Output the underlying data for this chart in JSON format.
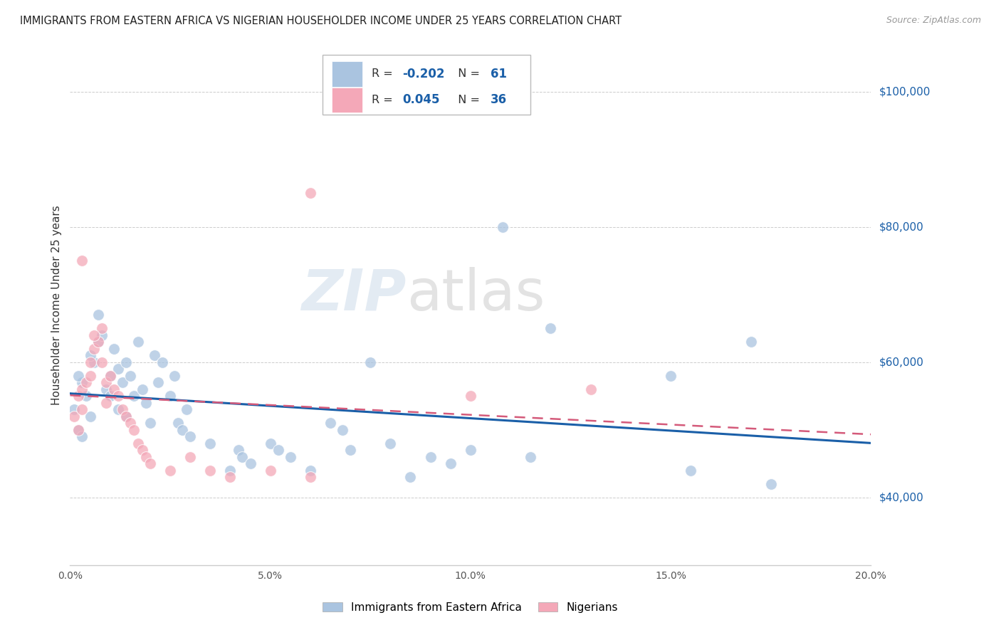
{
  "title": "IMMIGRANTS FROM EASTERN AFRICA VS NIGERIAN HOUSEHOLDER INCOME UNDER 25 YEARS CORRELATION CHART",
  "source": "Source: ZipAtlas.com",
  "ylabel": "Householder Income Under 25 years",
  "y_tick_labels": [
    "$40,000",
    "$60,000",
    "$80,000",
    "$100,000"
  ],
  "y_tick_values": [
    40000,
    60000,
    80000,
    100000
  ],
  "xlim": [
    0.0,
    0.2
  ],
  "ylim": [
    30000,
    107000
  ],
  "blue_R": "-0.202",
  "blue_N": "61",
  "pink_R": "0.045",
  "pink_N": "36",
  "blue_color": "#aac4e0",
  "pink_color": "#f4a8b8",
  "blue_line_color": "#1a5fa8",
  "pink_line_color": "#d45a7a",
  "blue_scatter": [
    [
      0.001,
      53000
    ],
    [
      0.002,
      50000
    ],
    [
      0.003,
      57000
    ],
    [
      0.004,
      55000
    ],
    [
      0.005,
      52000
    ],
    [
      0.003,
      49000
    ],
    [
      0.002,
      58000
    ],
    [
      0.006,
      60000
    ],
    [
      0.007,
      63000
    ],
    [
      0.008,
      64000
    ],
    [
      0.005,
      61000
    ],
    [
      0.009,
      56000
    ],
    [
      0.01,
      58000
    ],
    [
      0.011,
      62000
    ],
    [
      0.012,
      59000
    ],
    [
      0.01,
      55000
    ],
    [
      0.013,
      57000
    ],
    [
      0.012,
      53000
    ],
    [
      0.014,
      60000
    ],
    [
      0.015,
      58000
    ],
    [
      0.016,
      55000
    ],
    [
      0.014,
      52000
    ],
    [
      0.017,
      63000
    ],
    [
      0.007,
      67000
    ],
    [
      0.018,
      56000
    ],
    [
      0.019,
      54000
    ],
    [
      0.02,
      51000
    ],
    [
      0.021,
      61000
    ],
    [
      0.022,
      57000
    ],
    [
      0.023,
      60000
    ],
    [
      0.025,
      55000
    ],
    [
      0.026,
      58000
    ],
    [
      0.027,
      51000
    ],
    [
      0.028,
      50000
    ],
    [
      0.029,
      53000
    ],
    [
      0.03,
      49000
    ],
    [
      0.035,
      48000
    ],
    [
      0.04,
      44000
    ],
    [
      0.042,
      47000
    ],
    [
      0.043,
      46000
    ],
    [
      0.045,
      45000
    ],
    [
      0.05,
      48000
    ],
    [
      0.052,
      47000
    ],
    [
      0.055,
      46000
    ],
    [
      0.06,
      44000
    ],
    [
      0.065,
      51000
    ],
    [
      0.068,
      50000
    ],
    [
      0.07,
      47000
    ],
    [
      0.075,
      60000
    ],
    [
      0.08,
      48000
    ],
    [
      0.085,
      43000
    ],
    [
      0.09,
      46000
    ],
    [
      0.095,
      45000
    ],
    [
      0.1,
      47000
    ],
    [
      0.108,
      80000
    ],
    [
      0.115,
      46000
    ],
    [
      0.12,
      65000
    ],
    [
      0.15,
      58000
    ],
    [
      0.155,
      44000
    ],
    [
      0.17,
      63000
    ],
    [
      0.175,
      42000
    ]
  ],
  "pink_scatter": [
    [
      0.001,
      52000
    ],
    [
      0.002,
      55000
    ],
    [
      0.003,
      56000
    ],
    [
      0.002,
      50000
    ],
    [
      0.004,
      57000
    ],
    [
      0.003,
      53000
    ],
    [
      0.005,
      60000
    ],
    [
      0.005,
      58000
    ],
    [
      0.006,
      62000
    ],
    [
      0.007,
      63000
    ],
    [
      0.008,
      65000
    ],
    [
      0.006,
      64000
    ],
    [
      0.008,
      60000
    ],
    [
      0.009,
      57000
    ],
    [
      0.01,
      58000
    ],
    [
      0.009,
      54000
    ],
    [
      0.011,
      56000
    ],
    [
      0.012,
      55000
    ],
    [
      0.013,
      53000
    ],
    [
      0.003,
      75000
    ],
    [
      0.014,
      52000
    ],
    [
      0.015,
      51000
    ],
    [
      0.016,
      50000
    ],
    [
      0.017,
      48000
    ],
    [
      0.018,
      47000
    ],
    [
      0.019,
      46000
    ],
    [
      0.02,
      45000
    ],
    [
      0.025,
      44000
    ],
    [
      0.03,
      46000
    ],
    [
      0.035,
      44000
    ],
    [
      0.04,
      43000
    ],
    [
      0.06,
      85000
    ],
    [
      0.05,
      44000
    ],
    [
      0.06,
      43000
    ],
    [
      0.1,
      55000
    ],
    [
      0.13,
      56000
    ]
  ],
  "watermark": "ZIPatlas",
  "legend_labels": [
    "Immigrants from Eastern Africa",
    "Nigerians"
  ],
  "x_ticks": [
    0.0,
    0.05,
    0.1,
    0.15,
    0.2
  ],
  "x_tick_labels": [
    "0.0%",
    "5.0%",
    "10.0%",
    "15.0%",
    "20.0%"
  ]
}
